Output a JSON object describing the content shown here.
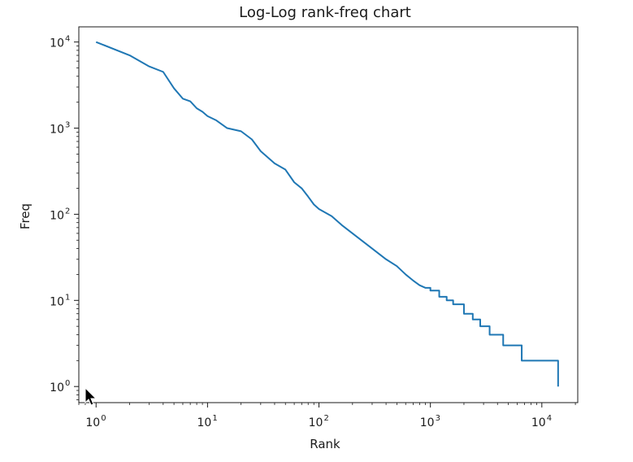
{
  "chart_data": {
    "type": "line",
    "title": "Log-Log rank-freq chart",
    "xlabel": "Rank",
    "ylabel": "Freq",
    "xscale": "log",
    "yscale": "log",
    "xlim": [
      0.7,
      21000
    ],
    "ylim": [
      0.65,
      15000
    ],
    "grid": false,
    "legend": "none",
    "line_color": "#1f77b4",
    "x_ticks": [
      {
        "value": 1,
        "base": "10",
        "exp": "0"
      },
      {
        "value": 10,
        "base": "10",
        "exp": "1"
      },
      {
        "value": 100,
        "base": "10",
        "exp": "2"
      },
      {
        "value": 1000,
        "base": "10",
        "exp": "3"
      },
      {
        "value": 10000,
        "base": "10",
        "exp": "4"
      }
    ],
    "y_ticks": [
      {
        "value": 1,
        "base": "10",
        "exp": "0"
      },
      {
        "value": 10,
        "base": "10",
        "exp": "1"
      },
      {
        "value": 100,
        "base": "10",
        "exp": "2"
      },
      {
        "value": 1000,
        "base": "10",
        "exp": "3"
      },
      {
        "value": 10000,
        "base": "10",
        "exp": "4"
      }
    ],
    "series": [
      {
        "x": [
          1,
          2,
          3,
          4,
          5,
          6,
          7,
          8,
          9,
          10,
          12,
          15,
          20,
          25,
          30,
          40,
          50,
          60,
          70,
          80,
          90,
          100,
          130,
          160,
          200,
          250,
          300,
          400,
          500,
          600,
          700,
          800,
          900,
          1000,
          1200,
          1400,
          1600,
          2000,
          2400,
          2800,
          3400,
          4500,
          6600,
          14000
        ],
        "y": [
          10000,
          7000,
          5200,
          4500,
          2900,
          2200,
          2050,
          1700,
          1550,
          1380,
          1230,
          1000,
          920,
          740,
          540,
          390,
          330,
          235,
          200,
          160,
          130,
          115,
          95,
          75,
          60,
          48,
          40,
          30,
          25,
          20,
          17,
          15,
          14,
          13,
          11,
          10,
          9,
          7,
          6,
          5,
          4,
          3,
          2,
          1
        ]
      }
    ]
  }
}
